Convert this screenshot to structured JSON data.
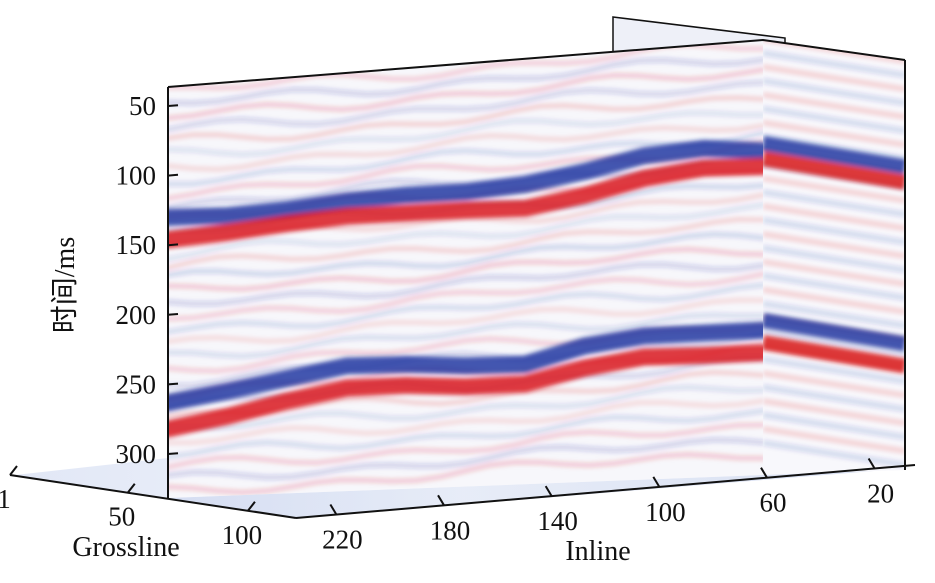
{
  "chart_data": {
    "type": "heatmap",
    "variant": "3d seismic cube sections",
    "colormap": [
      "#1b2f9e",
      "#ffffff",
      "#d9141c"
    ],
    "y_axis": {
      "label": "时间/ms",
      "ticks": [
        "50",
        "100",
        "150",
        "200",
        "250",
        "300"
      ],
      "tick_values": [
        50,
        100,
        150,
        200,
        250,
        300
      ],
      "range": [
        38,
        325
      ],
      "reversed": true
    },
    "inline_axis": {
      "label": "Inline",
      "ticks": [
        "220",
        "180",
        "140",
        "100",
        "60",
        "20"
      ],
      "tick_values": [
        220,
        180,
        140,
        100,
        60,
        20
      ],
      "range": [
        235,
        5
      ]
    },
    "crossline_axis": {
      "label": "Grossline",
      "ticks": [
        "1",
        "50",
        "100"
      ],
      "tick_values": [
        1,
        50,
        100
      ],
      "range": [
        1,
        120
      ]
    },
    "reflectors_inline_section": [
      {
        "polarity": "negative",
        "amplitude": 0.95,
        "time": [
          130,
          132,
          131,
          128,
          127,
          128,
          126,
          120,
          112,
          110,
          115
        ]
      },
      {
        "polarity": "positive",
        "amplitude": 1.0,
        "time": [
          146,
          144,
          141,
          139,
          140,
          141,
          143,
          137,
          128,
          124,
          126
        ]
      },
      {
        "polarity": "negative",
        "amplitude": 0.95,
        "time": [
          263,
          258,
          252,
          246,
          248,
          252,
          254,
          244,
          240,
          241,
          242
        ]
      },
      {
        "polarity": "positive",
        "amplitude": 1.0,
        "time": [
          282,
          276,
          268,
          262,
          263,
          267,
          268,
          260,
          255,
          257,
          258
        ]
      }
    ]
  }
}
